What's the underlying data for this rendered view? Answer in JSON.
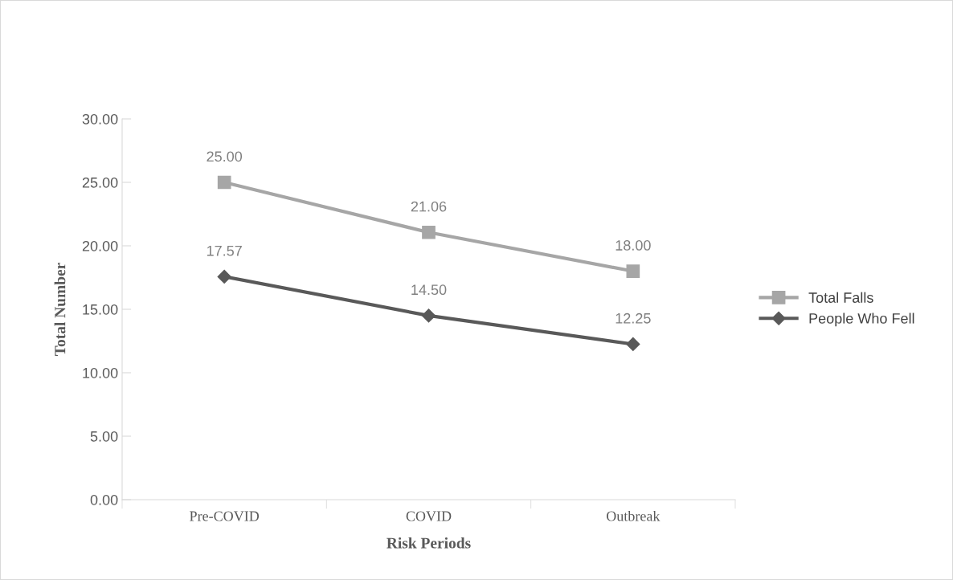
{
  "chart_data": {
    "type": "line",
    "xlabel": "Risk Periods",
    "ylabel": "Total Number",
    "categories": [
      "Pre-COVID",
      "COVID",
      "Outbreak"
    ],
    "series": [
      {
        "name": "Total Falls",
        "color": "#a6a6a6",
        "marker": "square",
        "values": [
          25.0,
          21.06,
          18.0
        ],
        "value_labels": [
          "25.00",
          "21.06",
          "18.00"
        ]
      },
      {
        "name": "People Who Fell",
        "color": "#595959",
        "marker": "diamond",
        "values": [
          17.57,
          14.5,
          12.25
        ],
        "value_labels": [
          "17.57",
          "14.50",
          "12.25"
        ]
      }
    ],
    "ylim": [
      0,
      30
    ],
    "yticks": [
      {
        "value": 0,
        "label": "0.00"
      },
      {
        "value": 5,
        "label": "5.00"
      },
      {
        "value": 10,
        "label": "10.00"
      },
      {
        "value": 15,
        "label": "15.00"
      },
      {
        "value": 20,
        "label": "20.00"
      },
      {
        "value": 25,
        "label": "25.00"
      },
      {
        "value": 30,
        "label": "30.00"
      }
    ],
    "grid": false,
    "legend": "right",
    "line_style": "solid"
  }
}
